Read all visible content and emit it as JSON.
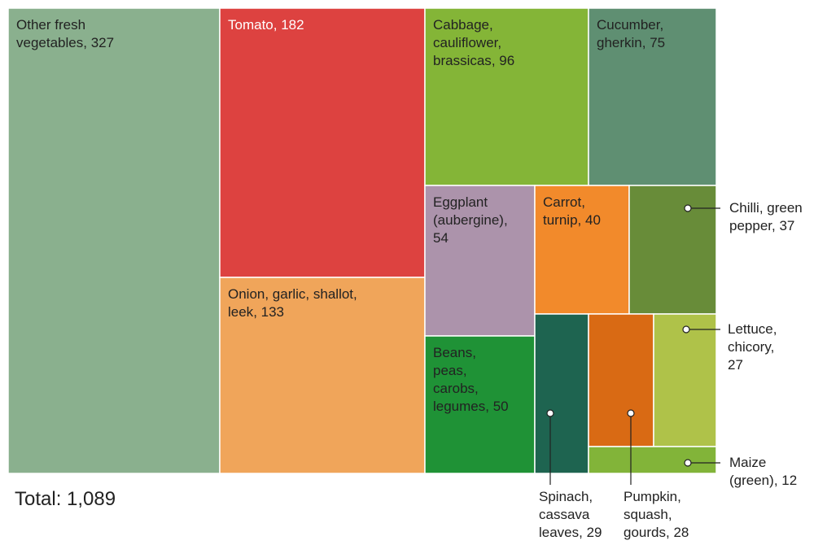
{
  "chart_data": {
    "type": "treemap",
    "categories": [
      "Other fresh vegetables",
      "Tomato",
      "Onion, garlic, shallot, leek",
      "Cabbage, cauliflower, brassicas",
      "Cucumber, gherkin",
      "Eggplant (aubergine)",
      "Beans, peas, carobs, legumes",
      "Carrot, turnip",
      "Chilli, green pepper",
      "Spinach, cassava leaves",
      "Pumpkin, squash, gourds",
      "Lettuce, chicory",
      "Maize (green)"
    ],
    "values": [
      327,
      182,
      133,
      96,
      75,
      54,
      50,
      40,
      37,
      29,
      28,
      27,
      12
    ],
    "colors": [
      "#8ab08e",
      "#dd4240",
      "#f0a55a",
      "#84b537",
      "#5f8f72",
      "#ac93ab",
      "#1f9236",
      "#f28a2b",
      "#688c39",
      "#1e6450",
      "#d96a14",
      "#afc249",
      "#82b439"
    ],
    "annotation": "Total: 1,089"
  }
}
